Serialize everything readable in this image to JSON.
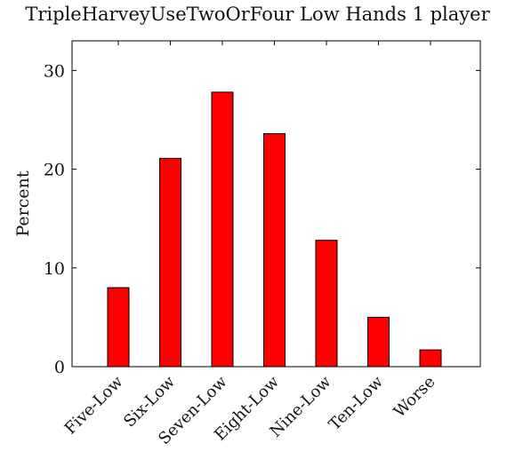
{
  "chart_data": {
    "type": "bar",
    "title": "TripleHarveyUseTwoOrFour Low Hands 1 player",
    "xlabel": "",
    "ylabel": "Percent",
    "categories": [
      "Five-Low",
      "Six-Low",
      "Seven-Low",
      "Eight-Low",
      "Nine-Low",
      "Ten-Low",
      "Worse"
    ],
    "values": [
      8.0,
      21.1,
      27.8,
      23.6,
      12.8,
      5.0,
      1.7
    ],
    "ylim": [
      0,
      33
    ],
    "yticks": [
      0,
      10,
      20,
      30
    ],
    "grid": false,
    "bar_color": "#ff0000",
    "bar_edge_color": "#000000"
  }
}
